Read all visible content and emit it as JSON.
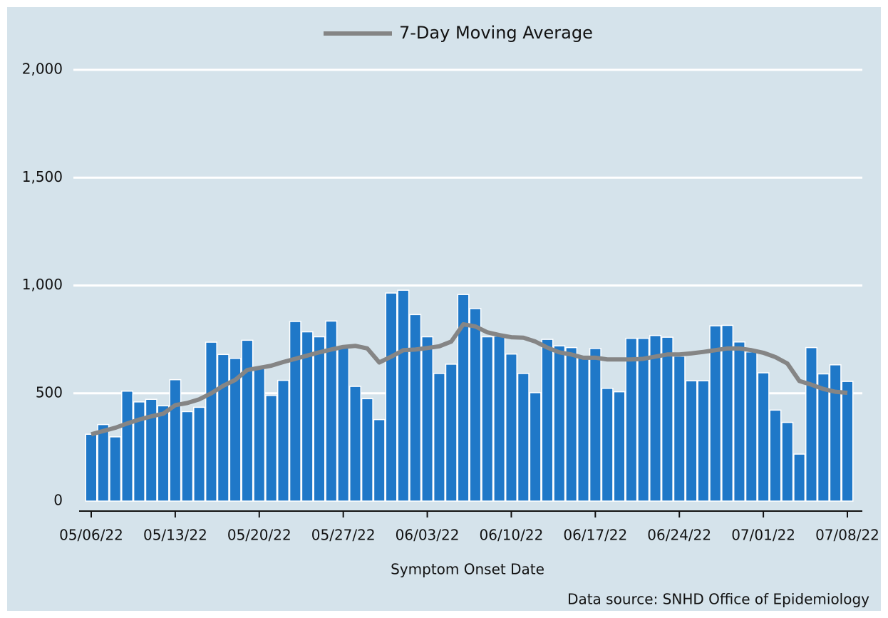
{
  "chart_data": {
    "type": "bar",
    "categories": [
      "05/06/22",
      null,
      null,
      null,
      null,
      null,
      null,
      "05/13/22",
      null,
      null,
      null,
      null,
      null,
      null,
      "05/20/22",
      null,
      null,
      null,
      null,
      null,
      null,
      "05/27/22",
      null,
      null,
      null,
      null,
      null,
      null,
      "06/03/22",
      null,
      null,
      null,
      null,
      null,
      null,
      "06/10/22",
      null,
      null,
      null,
      null,
      null,
      null,
      "06/17/22",
      null,
      null,
      null,
      null,
      null,
      null,
      "06/24/22",
      null,
      null,
      null,
      null,
      null,
      null,
      "07/01/22",
      null,
      null,
      null,
      null,
      null,
      null,
      "07/08/22"
    ],
    "series": [
      {
        "type": "bar",
        "color": "#1f78c8",
        "values": [
          310,
          355,
          298,
          510,
          460,
          472,
          442,
          563,
          415,
          435,
          737,
          680,
          662,
          746,
          620,
          490,
          560,
          833,
          785,
          762,
          835,
          718,
          532,
          475,
          378,
          965,
          978,
          865,
          762,
          592,
          635,
          958,
          893,
          762,
          765,
          682,
          592,
          503,
          750,
          720,
          712,
          668,
          708,
          523,
          507,
          755,
          755,
          768,
          760,
          672,
          558,
          558,
          813,
          815,
          738,
          692,
          595,
          422,
          365,
          218,
          712,
          590,
          632,
          555
        ]
      },
      {
        "type": "line",
        "name": "7-Day Moving Average",
        "color": "#858585",
        "values": [
          310,
          325,
          340,
          360,
          378,
          393,
          405,
          445,
          455,
          472,
          500,
          535,
          562,
          608,
          618,
          628,
          645,
          660,
          675,
          690,
          703,
          715,
          720,
          708,
          643,
          670,
          700,
          703,
          710,
          718,
          740,
          820,
          810,
          783,
          770,
          760,
          758,
          740,
          712,
          690,
          680,
          665,
          665,
          657,
          657,
          657,
          660,
          670,
          680,
          680,
          685,
          692,
          700,
          708,
          708,
          700,
          688,
          668,
          638,
          557,
          540,
          520,
          507,
          502
        ]
      }
    ],
    "ylim": [
      0,
      2000
    ],
    "yticks": [
      0,
      500,
      {
        "value": 1000,
        "label": "1,000"
      },
      {
        "value": 1500,
        "label": "1,500"
      },
      {
        "value": 2000,
        "label": "2,000"
      }
    ],
    "grid": true,
    "x_label": "Symptom Onset Date",
    "source": "Data source: SNHD Office of Epidemiology",
    "legend": "top"
  }
}
